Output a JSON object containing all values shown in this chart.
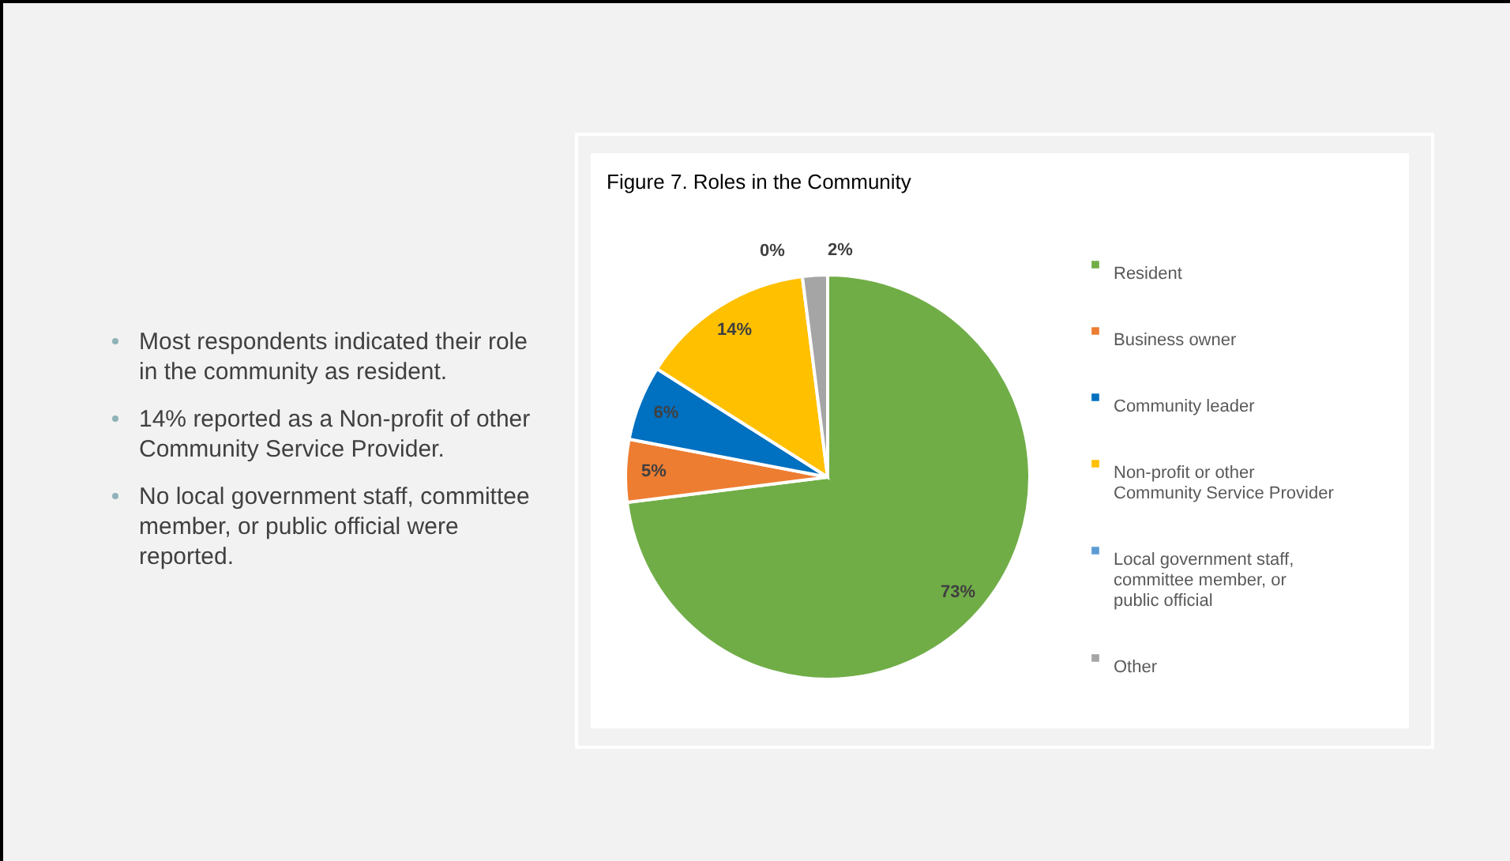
{
  "chart_data": {
    "type": "pie",
    "title": "Figure 7. Roles in the Community",
    "categories": [
      "Resident",
      "Business owner",
      "Community leader",
      "Non-profit or other Community Service Provider",
      "Local government staff, committee member, or public official",
      "Other"
    ],
    "values": [
      73,
      5,
      6,
      14,
      0,
      2
    ],
    "colors": [
      "#70ad47",
      "#ed7d31",
      "#0070c0",
      "#ffc000",
      "#5b9bd5",
      "#a5a5a5"
    ],
    "value_labels": [
      "73%",
      "5%",
      "6%",
      "14%",
      "0%",
      "2%"
    ],
    "legend": "right",
    "annotations": [
      "Most respondents indicated their role in the community as resident.",
      "14% reported as a Non-profit of other Community Service Provider.",
      "No local government staff, committee member, or public official were reported."
    ]
  }
}
